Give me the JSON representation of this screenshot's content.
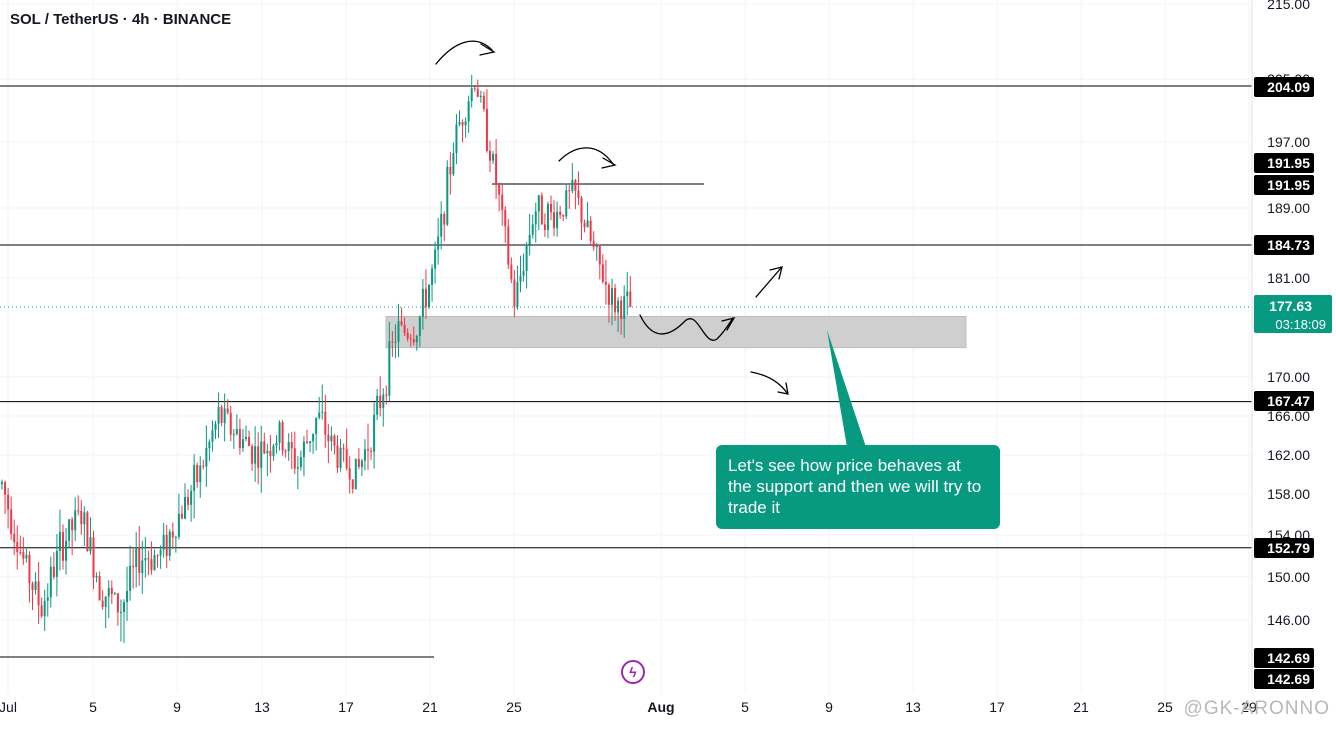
{
  "title": "SOL / TetherUS · 4h · BINANCE",
  "callout_text": "Let's see how price behaves at the support and then we will try to trade it",
  "watermark": "@GK-ARONNO",
  "colors": {
    "up": "#089981",
    "down": "#f23645",
    "zone": "#cfcfcf",
    "callout": "#089981",
    "line": "#000000",
    "lightning": "#9c27b0"
  },
  "icons": {
    "lightning": "lightning-icon"
  },
  "chart_data": {
    "type": "candlestick",
    "title": "SOL / TetherUS · 4h · BINANCE",
    "ylim": [
      141.5,
      215
    ],
    "y_ticks": [
      "215.00",
      "205.00",
      "197.00",
      "189.00",
      "181.00",
      "170.00",
      "166.00",
      "162.00",
      "158.00",
      "154.00",
      "150.00",
      "146.00"
    ],
    "x_ticks": [
      "Jul",
      "5",
      "9",
      "13",
      "17",
      "21",
      "25",
      "Aug",
      "5",
      "9",
      "13",
      "17",
      "21",
      "25",
      "29"
    ],
    "horizontal_levels": [
      {
        "value": 204.09,
        "label": "204.09"
      },
      {
        "value": 191.95,
        "label": "191.95"
      },
      {
        "value": 184.73,
        "label": "184.73"
      },
      {
        "value": 167.47,
        "label": "167.47"
      },
      {
        "value": 152.79,
        "label": "152.79"
      },
      {
        "value": 142.69,
        "label": "142.69"
      }
    ],
    "extra_price_labels": [
      "191.95",
      "142.69"
    ],
    "current_price": {
      "value": 177.63,
      "label": "177.63",
      "countdown": "03:18:09"
    },
    "support_zone": {
      "low": 173.2,
      "high": 176.6
    },
    "price_path": [
      [
        0,
        159
      ],
      [
        1,
        152
      ],
      [
        2,
        147
      ],
      [
        3,
        153
      ],
      [
        4,
        156
      ],
      [
        5,
        149
      ],
      [
        6,
        147
      ],
      [
        7,
        152
      ],
      [
        8,
        152
      ],
      [
        9,
        156
      ],
      [
        10,
        160
      ],
      [
        11,
        166
      ],
      [
        12,
        164
      ],
      [
        13,
        162
      ],
      [
        14,
        164
      ],
      [
        15,
        161
      ],
      [
        16,
        166
      ],
      [
        17,
        162
      ],
      [
        18,
        160
      ],
      [
        19,
        166
      ],
      [
        20,
        175
      ],
      [
        21,
        175
      ],
      [
        22,
        183
      ],
      [
        23,
        198
      ],
      [
        24,
        205
      ],
      [
        25,
        193
      ],
      [
        26,
        178
      ],
      [
        27,
        189
      ],
      [
        28,
        188
      ],
      [
        29,
        191
      ],
      [
        30,
        184
      ],
      [
        31,
        178
      ],
      [
        32,
        177.6
      ]
    ]
  }
}
